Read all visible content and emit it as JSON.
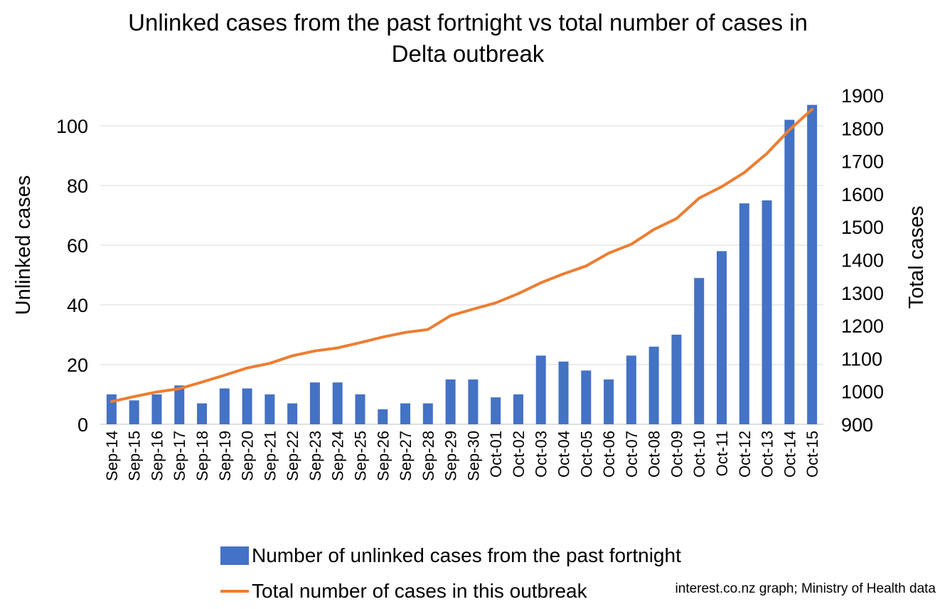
{
  "chart_data": {
    "type": "bar",
    "title": "Unlinked cases from the past fortnight vs total number of cases in\nDelta outbreak",
    "categories": [
      "Sep-14",
      "Sep-15",
      "Sep-16",
      "Sep-17",
      "Sep-18",
      "Sep-19",
      "Sep-20",
      "Sep-21",
      "Sep-22",
      "Sep-23",
      "Sep-24",
      "Sep-25",
      "Sep-26",
      "Sep-27",
      "Sep-28",
      "Sep-29",
      "Sep-30",
      "Oct-01",
      "Oct-02",
      "Oct-03",
      "Oct-04",
      "Oct-05",
      "Oct-06",
      "Oct-07",
      "Oct-08",
      "Oct-09",
      "Oct-10",
      "Oct-11",
      "Oct-12",
      "Oct-13",
      "Oct-14",
      "Oct-15"
    ],
    "series": [
      {
        "name": "Number of unlinked cases from the past fortnight",
        "type": "bar",
        "axis": "left",
        "color": "#4472C4",
        "values": [
          10,
          8,
          10,
          13,
          7,
          12,
          12,
          10,
          7,
          14,
          14,
          10,
          5,
          7,
          7,
          15,
          15,
          9,
          10,
          23,
          21,
          18,
          15,
          23,
          26,
          30,
          49,
          58,
          74,
          75,
          102,
          107
        ]
      },
      {
        "name": "Total number of cases in this outbreak",
        "type": "line",
        "axis": "right",
        "color": "#ED7D31",
        "values": [
          969,
          984,
          998,
          1008,
          1028,
          1049,
          1071,
          1085,
          1108,
          1123,
          1132,
          1148,
          1165,
          1179,
          1188,
          1230,
          1250,
          1269,
          1297,
          1330,
          1357,
          1381,
          1420,
          1447,
          1492,
          1525,
          1587,
          1622,
          1665,
          1723,
          1795,
          1857
        ]
      }
    ],
    "ylabel": "Unlinked cases",
    "y2label": "Total cases",
    "ylim": [
      0,
      110
    ],
    "yticks": [
      0,
      20,
      40,
      60,
      80,
      100
    ],
    "y2lim": [
      900,
      1900
    ],
    "y2ticks": [
      900,
      1000,
      1100,
      1200,
      1300,
      1400,
      1500,
      1600,
      1700,
      1800,
      1900
    ],
    "grid": true,
    "legend_position": "bottom",
    "source": "interest.co.nz graph; Ministry of Health data"
  }
}
